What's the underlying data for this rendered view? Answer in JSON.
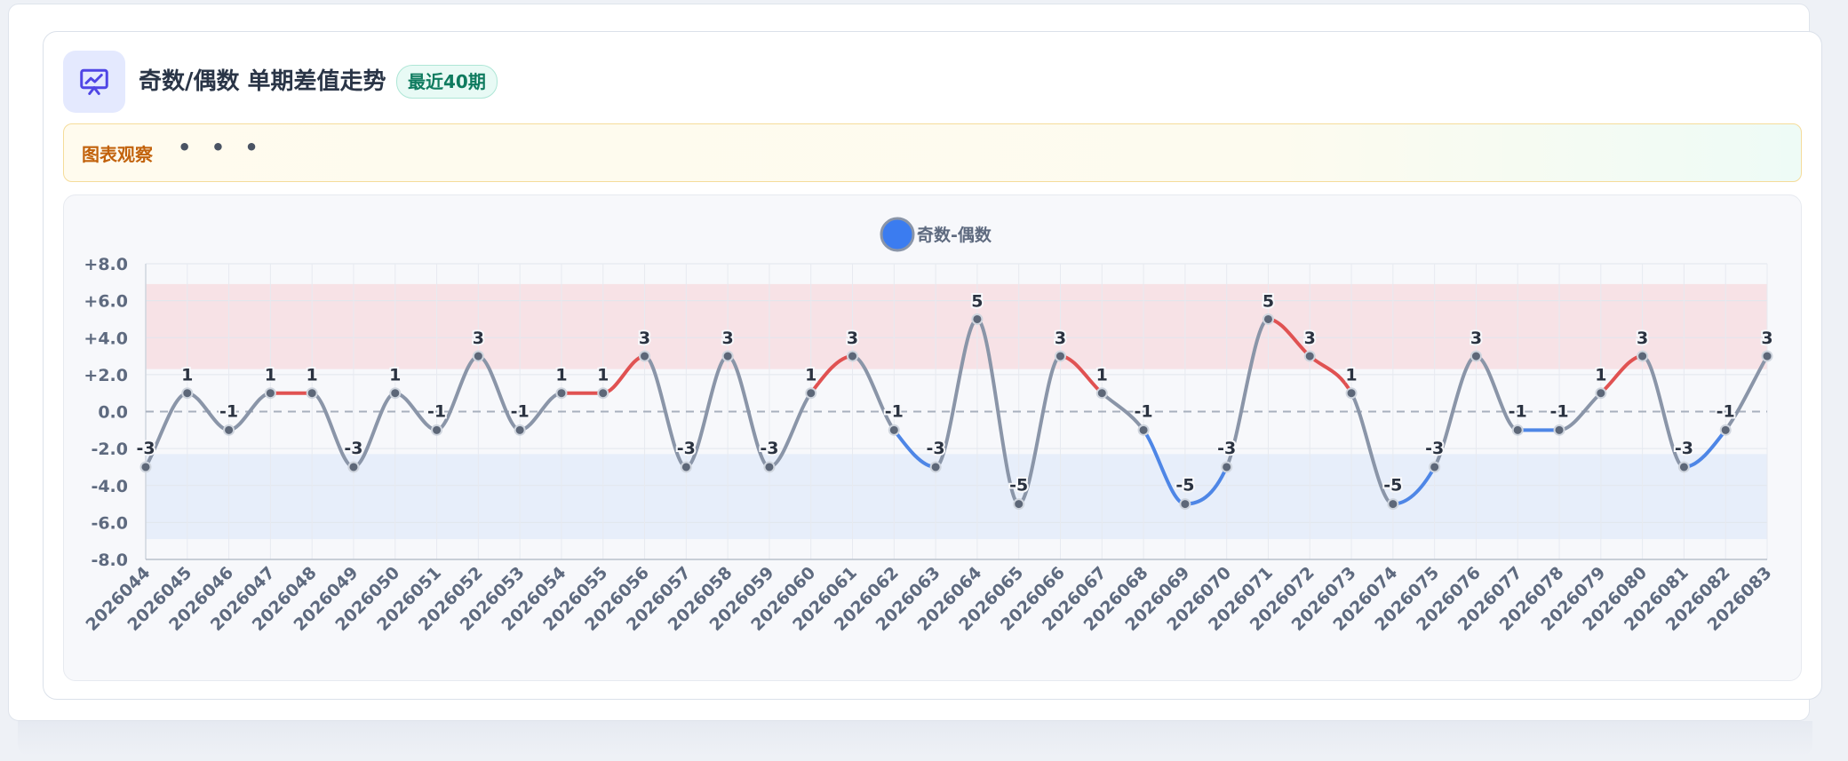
{
  "header": {
    "title": "奇数/偶数 单期差值走势",
    "badge": "最近40期",
    "icon": "chart-presentation-icon"
  },
  "observation": {
    "label": "图表观察",
    "dots": "• • •"
  },
  "colors": {
    "neutral_line": "#8a95a8",
    "up_line": "#e05252",
    "down_line": "#4e86e6",
    "upper_band": "#f7e2e6",
    "lower_band": "#e7eefa",
    "legend_dot": "#3b7cf0"
  },
  "chart_data": {
    "type": "line",
    "title": "",
    "xlabel": "",
    "ylabel": "",
    "ylim": [
      -8,
      8
    ],
    "y_ticks": [
      "+8.0",
      "+6.0",
      "+4.0",
      "+2.0",
      "0.0",
      "-2.0",
      "-4.0",
      "-6.0",
      "-8.0"
    ],
    "grid": true,
    "legend_position": "top-center",
    "reference_line": 0,
    "bands": [
      {
        "from": 2.3,
        "to": 6.9,
        "kind": "upper"
      },
      {
        "from": -2.3,
        "to": -6.9,
        "kind": "lower"
      }
    ],
    "x": [
      "2026044",
      "2026045",
      "2026046",
      "2026047",
      "2026048",
      "2026049",
      "2026050",
      "2026051",
      "2026052",
      "2026053",
      "2026054",
      "2026055",
      "2026056",
      "2026057",
      "2026058",
      "2026059",
      "2026060",
      "2026061",
      "2026062",
      "2026063",
      "2026064",
      "2026065",
      "2026066",
      "2026067",
      "2026068",
      "2026069",
      "2026070",
      "2026071",
      "2026072",
      "2026073",
      "2026074",
      "2026075",
      "2026076",
      "2026077",
      "2026078",
      "2026079",
      "2026080",
      "2026081",
      "2026082",
      "2026083"
    ],
    "series": [
      {
        "name": "奇数-偶数",
        "values": [
          -3,
          1,
          -1,
          1,
          1,
          -3,
          1,
          -1,
          3,
          -1,
          1,
          1,
          3,
          -3,
          3,
          -3,
          1,
          3,
          -1,
          -3,
          5,
          -5,
          3,
          1,
          -1,
          -5,
          -3,
          5,
          3,
          1,
          -5,
          -3,
          3,
          -1,
          -1,
          1,
          3,
          -3,
          -1,
          3
        ]
      }
    ]
  }
}
